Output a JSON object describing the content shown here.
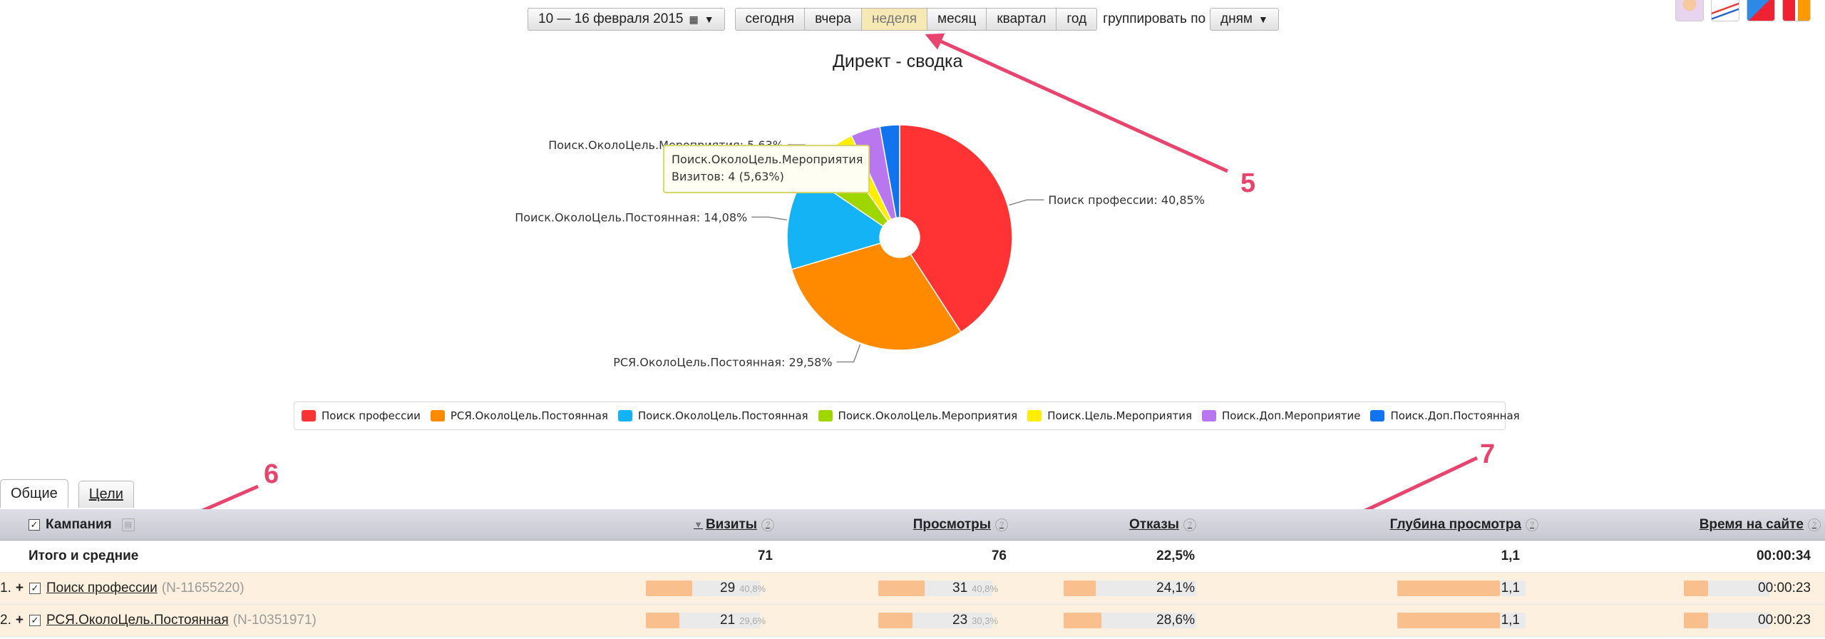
{
  "toolbar": {
    "date_range": "10 — 16 февраля 2015",
    "periods": [
      "сегодня",
      "вчера",
      "неделя",
      "месяц",
      "квартал",
      "год"
    ],
    "active_period": "неделя",
    "group_label": "группировать по",
    "group_value": "дням"
  },
  "chart_data": {
    "type": "pie",
    "title": "Директ - сводка",
    "donut": true,
    "categories": [
      "Поиск профессии",
      "РСЯ.ОколоЦель.Постоянная",
      "Поиск.ОколоЦель.Постоянная",
      "Поиск.ОколоЦель.Мероприятия",
      "Поиск.Цель.Мероприятия",
      "Поиск.Доп.Мероприятие",
      "Поиск.Доп.Постоянная"
    ],
    "values": [
      40.85,
      29.58,
      14.08,
      5.63,
      2.82,
      4.23,
      2.82
    ],
    "colors": [
      "#ff3333",
      "#ff8a00",
      "#14b3f5",
      "#9fd600",
      "#ffee00",
      "#b877ee",
      "#1173ee"
    ],
    "callouts": [
      {
        "index": 0,
        "text": "Поиск профессии: 40,85%"
      },
      {
        "index": 1,
        "text": "РСЯ.ОколоЦель.Постоянная: 29,58%"
      },
      {
        "index": 2,
        "text": "Поиск.ОколоЦель.Постоянная: 14,08%"
      },
      {
        "index": 3,
        "text": "Поиск.ОколоЦель.Мероприятия: 5,63%"
      }
    ],
    "legend_placement": "bottom"
  },
  "tooltip": {
    "line1": "Поиск.ОколоЦель.Мероприятия",
    "line2": "Визитов: 4 (5,63%)"
  },
  "annotations": [
    "5",
    "6",
    "7"
  ],
  "tabs": [
    "Общие",
    "Цели"
  ],
  "table": {
    "headers": {
      "campaign": "Кампания",
      "visits": "Визиты",
      "views": "Просмотры",
      "bounces": "Отказы",
      "depth": "Глубина просмотра",
      "time": "Время на сайте"
    },
    "total": {
      "label": "Итого и средние",
      "visits": "71",
      "views": "76",
      "bounces": "22,5%",
      "depth": "1,1",
      "time": "00:00:34"
    },
    "rows": [
      {
        "num": "1.",
        "name": "Поиск профессии",
        "id": "(N-11655220)",
        "visits": "29",
        "visits_pct": "40,8%",
        "visits_share": 0.408,
        "views": "31",
        "views_pct": "40,8%",
        "views_share": 0.408,
        "bounces": "24,1%",
        "bounces_share": 0.241,
        "depth": "1,1",
        "depth_share": 0.8,
        "time": "00:00:23",
        "time_share": 0.28
      },
      {
        "num": "2.",
        "name": "РСЯ.ОколоЦель.Постоянная",
        "id": "(N-10351971)",
        "visits": "21",
        "visits_pct": "29,6%",
        "visits_share": 0.296,
        "views": "23",
        "views_pct": "30,3%",
        "views_share": 0.303,
        "bounces": "28,6%",
        "bounces_share": 0.286,
        "depth": "1,1",
        "depth_share": 0.8,
        "time": "00:00:23",
        "time_share": 0.28
      }
    ]
  }
}
